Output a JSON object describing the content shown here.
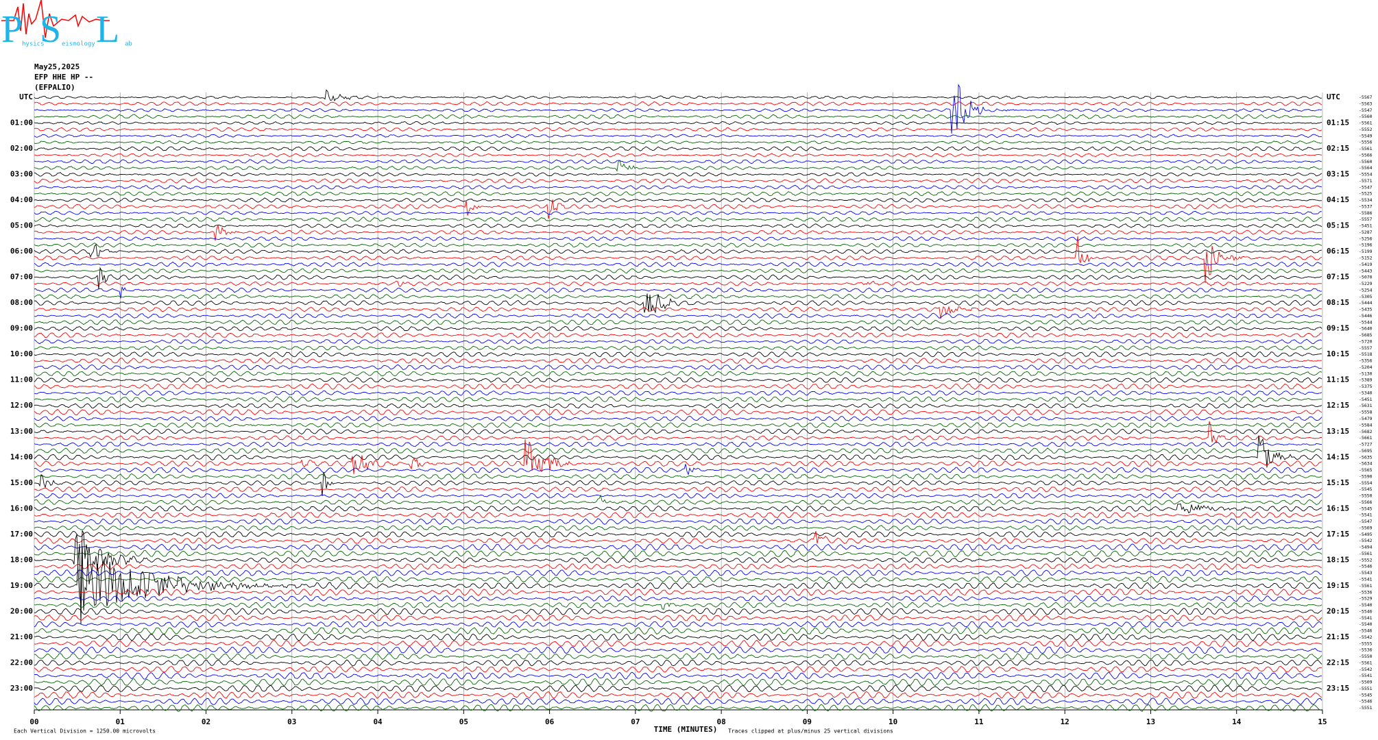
{
  "chart_data": {
    "type": "helicorder",
    "logo": {
      "letters": [
        "P",
        "S",
        "L"
      ],
      "words": [
        "hysics",
        "eismology",
        "ab"
      ]
    },
    "header": [
      "May25,2025",
      "EFP HHE HP --",
      "(EFPALIO)"
    ],
    "colors": [
      "#000000",
      "#ff0000",
      "#0000ff",
      "#006600"
    ],
    "left_labels": [
      "UTC",
      "01:00",
      "02:00",
      "03:00",
      "04:00",
      "05:00",
      "06:00",
      "07:00",
      "08:00",
      "09:00",
      "10:00",
      "11:00",
      "12:00",
      "13:00",
      "14:00",
      "15:00",
      "16:00",
      "17:00",
      "18:00",
      "19:00",
      "20:00",
      "21:00",
      "22:00",
      "23:00"
    ],
    "right_labels": [
      "UTC",
      "01:15",
      "02:15",
      "03:15",
      "04:15",
      "05:15",
      "06:15",
      "07:15",
      "08:15",
      "09:15",
      "10:15",
      "11:15",
      "12:15",
      "13:15",
      "14:15",
      "15:15",
      "16:15",
      "17:15",
      "18:15",
      "19:15",
      "20:15",
      "21:15",
      "22:15",
      "23:15"
    ],
    "trace_offsets": [
      -5567,
      -5563,
      -5547,
      -5560,
      -5561,
      -5552,
      -5549,
      -5556,
      -5561,
      -5566,
      -5560,
      -5564,
      -5554,
      -5571,
      -5547,
      -5525,
      -5534,
      -5537,
      -5586,
      -5557,
      -5451,
      -5287,
      -5256,
      -5196,
      -5199,
      -5152,
      -5419,
      -5443,
      -5070,
      -5229,
      -5254,
      -5305,
      -5444,
      -5435,
      -5446,
      -5544,
      -5640,
      -5685,
      -5720,
      -5557,
      -5518,
      -5356,
      -5204,
      -5130,
      -5389,
      -5375,
      -5340,
      -5451,
      -5631,
      -5558,
      -5479,
      -5584,
      -5682,
      -5661,
      -5727,
      -5695,
      -5635,
      -5634,
      -5565,
      -5590,
      -5554,
      -5545,
      -5550,
      -5566,
      -5545,
      -5541,
      -5547,
      -5569,
      -5495,
      -5542,
      -5494,
      -5561,
      -5552,
      -5546,
      -5543,
      -5541,
      -5561,
      -5536,
      -5529,
      -5540,
      -5546,
      -5541,
      -5540,
      -5546,
      -5542,
      -5555,
      -5536,
      -5550,
      -5561,
      -5542,
      -5541,
      -5509,
      -5551,
      -5545,
      -5546,
      -5551
    ],
    "xlim": [
      0,
      15
    ],
    "xticks": [
      {
        "value": 0,
        "label": "00"
      },
      {
        "value": 1,
        "label": "01"
      },
      {
        "value": 2,
        "label": "02"
      },
      {
        "value": 3,
        "label": "03"
      },
      {
        "value": 4,
        "label": "04"
      },
      {
        "value": 5,
        "label": "05"
      },
      {
        "value": 6,
        "label": "06"
      },
      {
        "value": 7,
        "label": "07"
      },
      {
        "value": 8,
        "label": "08"
      },
      {
        "value": 9,
        "label": "09"
      },
      10,
      11,
      12,
      13,
      14,
      15
    ],
    "xlabel": "TIME (MINUTES)",
    "scale_note": "Each Vertical Division = 1250.00 microvolts",
    "clip_note": "Traces clipped at plus/minus 25 vertical divisions",
    "grid": true
  }
}
